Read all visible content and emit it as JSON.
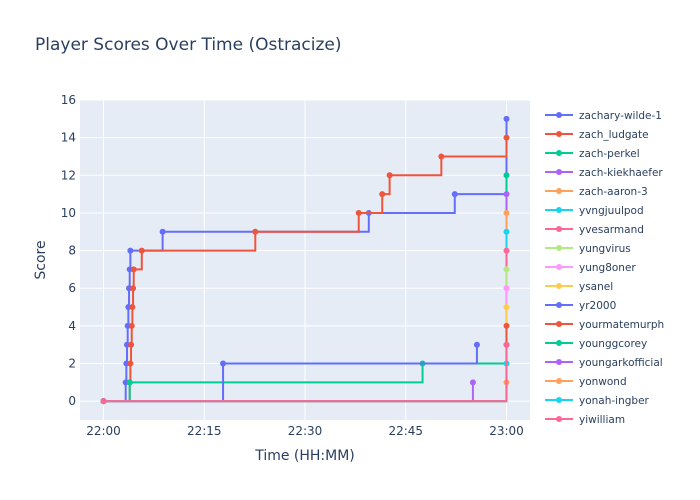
{
  "chart_data": {
    "type": "line",
    "title": "Player Scores Over Time (Ostracize)",
    "xlabel": "Time (HH:MM)",
    "ylabel": "Score",
    "ylim": [
      -1,
      16
    ],
    "y_ticks": [
      0,
      2,
      4,
      6,
      8,
      10,
      12,
      14,
      16
    ],
    "x_ticks": [
      "22:00",
      "22:15",
      "22:30",
      "22:45",
      "23:00"
    ],
    "x_range_minutes": [
      -3.5,
      63.5
    ],
    "line_shape": "step-after",
    "legend_placement": "right",
    "series": [
      {
        "name": "zachary-wilde-1",
        "color": "#636efa",
        "x": [
          0,
          3.3,
          3.4,
          3.5,
          3.6,
          3.7,
          3.8,
          3.9,
          4.0,
          8.8,
          39.5,
          52.3,
          60
        ],
        "y": [
          0,
          1,
          2,
          3,
          4,
          5,
          6,
          7,
          8,
          9,
          10,
          11,
          15
        ]
      },
      {
        "name": "zach_ludgate",
        "color": "#EF553B",
        "x": [
          0,
          3.9,
          4.0,
          4.1,
          4.2,
          4.3,
          4.4,
          4.5,
          5.7,
          22.6,
          38.0,
          41.5,
          42.6,
          50.3,
          60
        ],
        "y": [
          0,
          1,
          2,
          3,
          4,
          5,
          6,
          7,
          8,
          9,
          10,
          11,
          12,
          13,
          14
        ]
      },
      {
        "name": "zach-perkel",
        "color": "#00cc96",
        "x": [
          0,
          3.9,
          47.5,
          60
        ],
        "y": [
          0,
          1,
          2,
          12
        ]
      },
      {
        "name": "zach-kiekhaefer",
        "color": "#ab63fa",
        "x": [
          0,
          60
        ],
        "y": [
          0,
          11
        ]
      },
      {
        "name": "zach-aaron-3",
        "color": "#FFA15A",
        "x": [
          0,
          60
        ],
        "y": [
          0,
          10
        ]
      },
      {
        "name": "yvngjuulpod",
        "color": "#19d3f3",
        "x": [
          0,
          60
        ],
        "y": [
          0,
          9
        ]
      },
      {
        "name": "yvesarmand",
        "color": "#FF6692",
        "x": [
          0,
          60
        ],
        "y": [
          0,
          8
        ]
      },
      {
        "name": "yungvirus",
        "color": "#B6E880",
        "x": [
          0,
          60
        ],
        "y": [
          0,
          7
        ]
      },
      {
        "name": "yung8oner",
        "color": "#FF97FF",
        "x": [
          0,
          60
        ],
        "y": [
          0,
          6
        ]
      },
      {
        "name": "ysanel",
        "color": "#FECB52",
        "x": [
          0,
          60
        ],
        "y": [
          0,
          5
        ]
      },
      {
        "name": "yr2000",
        "color": "#636efa",
        "x": [
          0,
          17.8,
          55.6
        ],
        "y": [
          0,
          2,
          3
        ]
      },
      {
        "name": "yourmatemurph",
        "color": "#EF553B",
        "x": [
          0,
          60
        ],
        "y": [
          0,
          4
        ]
      },
      {
        "name": "younggcorey",
        "color": "#00cc96",
        "x": [
          0,
          60
        ],
        "y": [
          0,
          3
        ]
      },
      {
        "name": "youngarkofficial",
        "color": "#ab63fa",
        "x": [
          0,
          55.0
        ],
        "y": [
          0,
          1
        ]
      },
      {
        "name": "yonwond",
        "color": "#FFA15A",
        "x": [
          0,
          60
        ],
        "y": [
          0,
          1
        ]
      },
      {
        "name": "yonah-ingber",
        "color": "#19d3f3",
        "x": [
          0,
          60
        ],
        "y": [
          0,
          2
        ]
      },
      {
        "name": "yiwilliam",
        "color": "#FF6692",
        "x": [
          0,
          60
        ],
        "y": [
          0,
          3
        ]
      }
    ]
  }
}
